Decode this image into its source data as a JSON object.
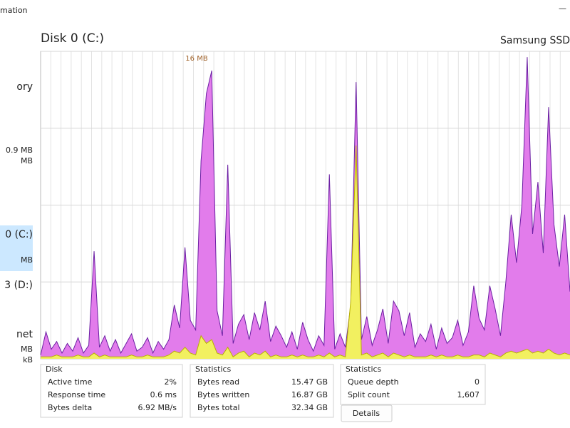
{
  "window": {
    "title_fragment": "mation",
    "minimize": "—"
  },
  "sidebar": {
    "items": [
      {
        "texts": [
          "ory"
        ]
      },
      {
        "texts": [
          "0.9 MB",
          "MB"
        ]
      },
      {
        "texts": [
          "0 (C:)",
          "MB"
        ],
        "selected": true
      },
      {
        "texts": [
          "3 (D:)"
        ]
      },
      {
        "texts": [
          "net",
          "MB",
          "kB"
        ]
      }
    ]
  },
  "header": {
    "title": "Disk 0 (C:)",
    "model": "Samsung SSD"
  },
  "chart_data": {
    "type": "area",
    "ylim": [
      0,
      16
    ],
    "yticks": [
      {
        "value": 16,
        "label": "16 MB"
      }
    ],
    "grid_lines": [
      4,
      8,
      12
    ],
    "series": [
      {
        "color": "#6b1fa3",
        "fill": "#e27ceb",
        "values": [
          0.2,
          1.4,
          0.5,
          0.9,
          0.3,
          0.8,
          0.4,
          1.1,
          0.3,
          0.7,
          5.6,
          0.6,
          1.2,
          0.4,
          1.0,
          0.3,
          0.8,
          1.3,
          0.4,
          0.6,
          1.1,
          0.3,
          0.9,
          0.5,
          1.0,
          2.8,
          1.6,
          5.8,
          2.0,
          1.5,
          10.3,
          13.8,
          15.0,
          2.5,
          1.2,
          10.1,
          0.8,
          1.8,
          2.3,
          1.0,
          2.4,
          1.5,
          3.0,
          0.9,
          1.7,
          1.2,
          0.6,
          1.4,
          0.5,
          1.9,
          1.0,
          0.4,
          1.2,
          0.7,
          9.6,
          0.5,
          1.3,
          0.6,
          2.8,
          14.4,
          1.0,
          2.2,
          0.7,
          1.5,
          2.6,
          0.8,
          3.0,
          2.5,
          1.2,
          2.4,
          0.6,
          1.3,
          0.9,
          1.8,
          0.5,
          1.6,
          0.8,
          1.1,
          2.0,
          0.7,
          1.4,
          3.8,
          2.1,
          1.5,
          3.8,
          2.6,
          1.2,
          4.0,
          7.5,
          5.0,
          8.0,
          15.7,
          6.5,
          9.2,
          5.5,
          13.1,
          7.0,
          4.8,
          7.5,
          3.5
        ]
      },
      {
        "color": "#b8b000",
        "fill": "#f2f060",
        "values": [
          0.1,
          0.1,
          0.1,
          0.2,
          0.1,
          0.1,
          0.1,
          0.2,
          0.1,
          0.1,
          0.3,
          0.1,
          0.2,
          0.1,
          0.1,
          0.1,
          0.1,
          0.2,
          0.1,
          0.1,
          0.2,
          0.1,
          0.1,
          0.1,
          0.2,
          0.4,
          0.3,
          0.6,
          0.3,
          0.2,
          1.2,
          0.8,
          1.0,
          0.3,
          0.2,
          0.6,
          0.1,
          0.3,
          0.4,
          0.1,
          0.3,
          0.2,
          0.4,
          0.1,
          0.2,
          0.1,
          0.1,
          0.2,
          0.1,
          0.2,
          0.1,
          0.1,
          0.2,
          0.1,
          0.3,
          0.1,
          0.2,
          0.1,
          3.0,
          11.1,
          0.2,
          0.3,
          0.1,
          0.2,
          0.3,
          0.1,
          0.3,
          0.2,
          0.1,
          0.2,
          0.1,
          0.1,
          0.1,
          0.2,
          0.1,
          0.2,
          0.1,
          0.1,
          0.2,
          0.1,
          0.1,
          0.2,
          0.2,
          0.1,
          0.3,
          0.2,
          0.1,
          0.3,
          0.4,
          0.3,
          0.4,
          0.5,
          0.3,
          0.4,
          0.3,
          0.5,
          0.3,
          0.2,
          0.3,
          0.2
        ]
      }
    ]
  },
  "panels": [
    {
      "title": "Disk",
      "rows": [
        [
          "Active time",
          "2%"
        ],
        [
          "Response time",
          "0.6 ms"
        ],
        [
          "Bytes delta",
          "6.92 MB/s"
        ]
      ]
    },
    {
      "title": "Statistics",
      "rows": [
        [
          "Bytes read",
          "15.47 GB"
        ],
        [
          "Bytes written",
          "16.87 GB"
        ],
        [
          "Bytes total",
          "32.34 GB"
        ]
      ]
    },
    {
      "title": "Statistics",
      "rows": [
        [
          "Queue depth",
          "0"
        ],
        [
          "Split count",
          "1,607"
        ]
      ]
    }
  ],
  "button": {
    "label": "Details"
  }
}
